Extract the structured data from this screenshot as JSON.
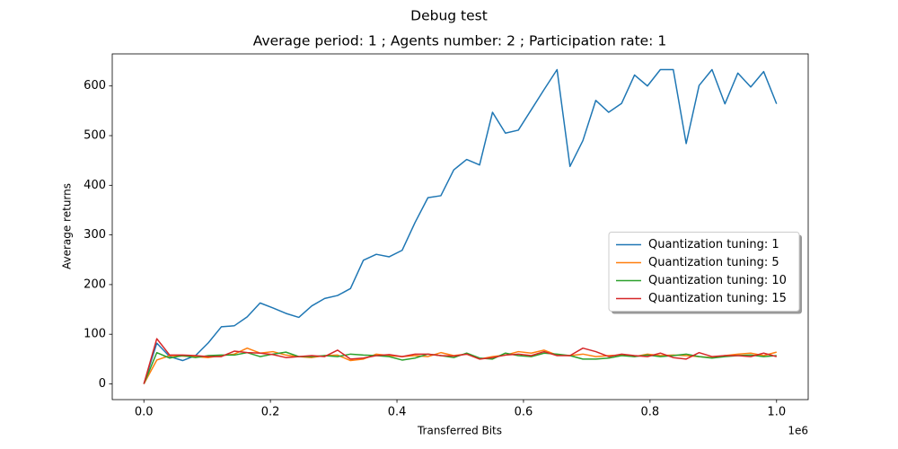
{
  "chart_data": {
    "type": "line",
    "title": "Debug test",
    "subtitle": "Average period: 1 ; Agents number: 2 ; Participation rate: 1",
    "x_label": "Transferred Bits",
    "y_label": "Average returns",
    "x_offset_label": "1e6",
    "x": [
      0,
      20408,
      40816,
      61224,
      81633,
      102041,
      122449,
      142857,
      163265,
      183673,
      204082,
      224490,
      244898,
      265306,
      285714,
      306122,
      326531,
      346939,
      367347,
      387755,
      408163,
      428571,
      448980,
      469388,
      489796,
      510204,
      530612,
      551020,
      571429,
      591837,
      612245,
      632653,
      653061,
      673469,
      693878,
      714286,
      734694,
      755102,
      775510,
      795918,
      816327,
      836735,
      857143,
      877551,
      897959,
      918367,
      938776,
      959184,
      979592,
      1000000
    ],
    "series": [
      {
        "name": "Quantization tuning: 1",
        "color": "#1f77b4",
        "values": [
          0,
          82,
          55,
          47,
          57,
          83,
          115,
          117,
          135,
          163,
          153,
          142,
          134,
          157,
          172,
          178,
          192,
          249,
          261,
          256,
          269,
          325,
          375,
          379,
          431,
          452,
          441,
          547,
          505,
          511,
          552,
          593,
          633,
          438,
          490,
          571,
          547,
          565,
          622,
          600,
          633,
          633,
          484,
          601,
          633,
          564,
          626,
          598,
          629,
          564
        ]
      },
      {
        "name": "Quantization tuning: 5",
        "color": "#ff7f0e",
        "values": [
          0,
          48,
          57,
          56,
          55,
          53,
          57,
          60,
          72,
          62,
          65,
          58,
          55,
          53,
          57,
          58,
          47,
          50,
          60,
          57,
          55,
          57,
          55,
          63,
          57,
          60,
          50,
          55,
          58,
          65,
          62,
          68,
          58,
          57,
          60,
          55,
          57,
          58,
          55,
          60,
          57,
          58,
          57,
          55,
          53,
          57,
          60,
          62,
          57,
          64
        ]
      },
      {
        "name": "Quantization tuning: 10",
        "color": "#2ca02c",
        "values": [
          0,
          63,
          52,
          57,
          53,
          57,
          58,
          58,
          63,
          55,
          60,
          64,
          55,
          55,
          57,
          55,
          60,
          58,
          57,
          55,
          48,
          52,
          60,
          57,
          53,
          62,
          52,
          50,
          62,
          57,
          55,
          62,
          60,
          57,
          50,
          50,
          52,
          57,
          55,
          58,
          55,
          57,
          60,
          55,
          52,
          55,
          57,
          58,
          55,
          57
        ]
      },
      {
        "name": "Quantization tuning: 15",
        "color": "#d62728",
        "values": [
          0,
          91,
          58,
          58,
          57,
          55,
          55,
          66,
          63,
          62,
          59,
          53,
          55,
          57,
          55,
          68,
          50,
          52,
          57,
          59,
          55,
          60,
          60,
          57,
          56,
          60,
          50,
          53,
          58,
          60,
          57,
          65,
          57,
          57,
          72,
          65,
          55,
          60,
          57,
          55,
          62,
          53,
          50,
          63,
          55,
          57,
          57,
          55,
          62,
          55
        ]
      }
    ],
    "xlim": [
      -50000,
      1050000
    ],
    "xticks": [
      {
        "value": 0,
        "label": "0.0"
      },
      {
        "value": 200000,
        "label": "0.2"
      },
      {
        "value": 400000,
        "label": "0.4"
      },
      {
        "value": 600000,
        "label": "0.6"
      },
      {
        "value": 800000,
        "label": "0.8"
      },
      {
        "value": 1000000,
        "label": "1.0"
      }
    ],
    "ylim": [
      -31.65,
      664.65
    ],
    "yticks": [
      0,
      100,
      200,
      300,
      400,
      500,
      600
    ],
    "grid": false,
    "legend": "center right"
  }
}
